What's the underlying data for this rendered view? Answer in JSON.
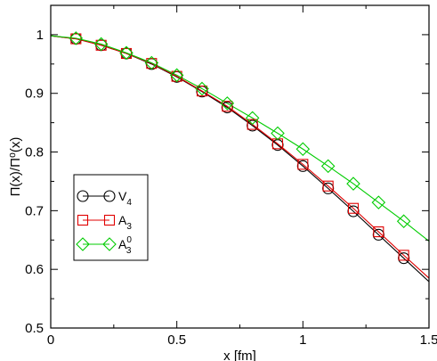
{
  "chart_data": {
    "type": "line",
    "xlabel": "x [fm]",
    "ylabel": "Π(x)/Π⁰(x)",
    "xlim": [
      0,
      1.5
    ],
    "ylim": [
      0.5,
      1.05
    ],
    "xticks": [
      0,
      0.5,
      1,
      1.5
    ],
    "xtick_labels": [
      "0",
      "0.5",
      "1",
      "1.5"
    ],
    "yticks": [
      0.5,
      0.6,
      0.7,
      0.8,
      0.9,
      1.0
    ],
    "ytick_labels": [
      "0.5",
      "0.6",
      "0.7",
      "0.8",
      "0.9",
      "1"
    ],
    "grid": false,
    "legend_position": "bottom-left",
    "x": [
      0.1,
      0.2,
      0.3,
      0.4,
      0.5,
      0.6,
      0.7,
      0.8,
      0.9,
      1.0,
      1.1,
      1.2,
      1.3,
      1.4
    ],
    "series": [
      {
        "name": "V4",
        "label_main": "V",
        "label_sub": "4",
        "label_sup": "",
        "marker": "circle",
        "color": "#000000",
        "values": [
          0.993,
          0.982,
          0.968,
          0.95,
          0.928,
          0.903,
          0.876,
          0.845,
          0.812,
          0.776,
          0.738,
          0.699,
          0.659,
          0.619
        ],
        "curve": [
          [
            0.0,
            0.998
          ],
          [
            0.1,
            0.993
          ],
          [
            0.2,
            0.982
          ],
          [
            0.3,
            0.968
          ],
          [
            0.4,
            0.95
          ],
          [
            0.5,
            0.928
          ],
          [
            0.6,
            0.903
          ],
          [
            0.7,
            0.876
          ],
          [
            0.8,
            0.845
          ],
          [
            0.9,
            0.812
          ],
          [
            1.0,
            0.776
          ],
          [
            1.1,
            0.738
          ],
          [
            1.2,
            0.699
          ],
          [
            1.3,
            0.659
          ],
          [
            1.4,
            0.619
          ],
          [
            1.5,
            0.579
          ]
        ]
      },
      {
        "name": "A3",
        "label_main": "A",
        "label_sub": "3",
        "label_sup": "",
        "marker": "square",
        "color": "#e00000",
        "values": [
          0.993,
          0.982,
          0.968,
          0.951,
          0.929,
          0.904,
          0.878,
          0.847,
          0.814,
          0.779,
          0.742,
          0.704,
          0.664,
          0.624
        ],
        "curve": [
          [
            0.0,
            0.998
          ],
          [
            0.1,
            0.993
          ],
          [
            0.2,
            0.982
          ],
          [
            0.3,
            0.968
          ],
          [
            0.4,
            0.951
          ],
          [
            0.5,
            0.929
          ],
          [
            0.6,
            0.904
          ],
          [
            0.7,
            0.878
          ],
          [
            0.8,
            0.847
          ],
          [
            0.9,
            0.814
          ],
          [
            1.0,
            0.779
          ],
          [
            1.1,
            0.742
          ],
          [
            1.2,
            0.704
          ],
          [
            1.3,
            0.664
          ],
          [
            1.4,
            0.624
          ],
          [
            1.5,
            0.585
          ]
        ]
      },
      {
        "name": "A3^0",
        "label_main": "A",
        "label_sub": "3",
        "label_sup": "0",
        "marker": "diamond",
        "color": "#00cc00",
        "values": [
          0.994,
          0.984,
          0.969,
          0.952,
          0.931,
          0.908,
          0.883,
          0.858,
          0.832,
          0.805,
          0.776,
          0.746,
          0.714,
          0.682
        ],
        "curve": [
          [
            0.0,
            0.998
          ],
          [
            0.1,
            0.994
          ],
          [
            0.2,
            0.984
          ],
          [
            0.3,
            0.969
          ],
          [
            0.4,
            0.952
          ],
          [
            0.5,
            0.931
          ],
          [
            0.6,
            0.908
          ],
          [
            0.7,
            0.883
          ],
          [
            0.8,
            0.858
          ],
          [
            0.9,
            0.832
          ],
          [
            1.0,
            0.805
          ],
          [
            1.1,
            0.776
          ],
          [
            1.2,
            0.746
          ],
          [
            1.3,
            0.714
          ],
          [
            1.4,
            0.682
          ],
          [
            1.5,
            0.648
          ]
        ]
      }
    ]
  }
}
